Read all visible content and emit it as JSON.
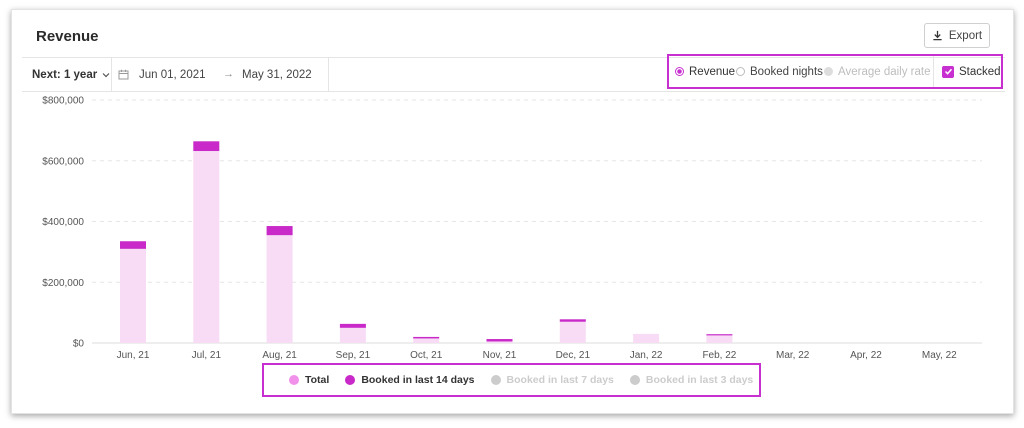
{
  "header": {
    "title": "Revenue",
    "export_label": "Export"
  },
  "toolbar": {
    "range_label": "Next: 1 year",
    "date_from": "Jun 01, 2021",
    "date_to": "May 31, 2022",
    "arrow": "→"
  },
  "options": {
    "metrics": [
      {
        "label": "Revenue",
        "state": "selected"
      },
      {
        "label": "Booked nights",
        "state": "unselected"
      },
      {
        "label": "Average daily rate",
        "state": "disabled"
      }
    ],
    "stacked_label": "Stacked",
    "stacked_checked": true
  },
  "colors": {
    "accent": "#c82fd0",
    "total_bar": "#f8dcf5",
    "booked14": "#c829c8",
    "disabled": "#cccccc",
    "grid": "#e6e6e6"
  },
  "chart_data": {
    "type": "bar",
    "stacked": true,
    "categories": [
      "Jun, 21",
      "Jul, 21",
      "Aug, 21",
      "Sep, 21",
      "Oct, 21",
      "Nov, 21",
      "Dec, 21",
      "Jan, 22",
      "Feb, 22",
      "Mar, 22",
      "Apr, 22",
      "May, 22"
    ],
    "y_ticks": [
      "$800,000",
      "$600,000",
      "$400,000",
      "$200,000",
      "$0"
    ],
    "y_tick_values": [
      800000,
      600000,
      400000,
      200000,
      0
    ],
    "ylim": [
      0,
      800000
    ],
    "grid": true,
    "legend_position": "bottom",
    "series": [
      {
        "name": "Total",
        "values": [
          310000,
          632000,
          355000,
          50000,
          15000,
          5000,
          70000,
          30000,
          25000,
          0,
          0,
          0
        ]
      },
      {
        "name": "Booked in last 14 days",
        "values": [
          25000,
          32000,
          30000,
          13000,
          5000,
          8000,
          8000,
          0,
          4000,
          0,
          0,
          0
        ]
      },
      {
        "name": "Booked in last 7 days",
        "values": [
          0,
          0,
          0,
          0,
          0,
          0,
          0,
          0,
          0,
          0,
          0,
          0
        ]
      },
      {
        "name": "Booked in last 3 days",
        "values": [
          0,
          0,
          0,
          0,
          0,
          0,
          0,
          0,
          0,
          0,
          0,
          0
        ]
      }
    ]
  },
  "legend": [
    {
      "label": "Total",
      "color": "#f191ea",
      "active": true
    },
    {
      "label": "Booked in last 14 days",
      "color": "#c829c8",
      "active": true
    },
    {
      "label": "Booked in last 7 days",
      "color": "#cccccc",
      "active": false
    },
    {
      "label": "Booked in last 3 days",
      "color": "#cccccc",
      "active": false
    }
  ]
}
